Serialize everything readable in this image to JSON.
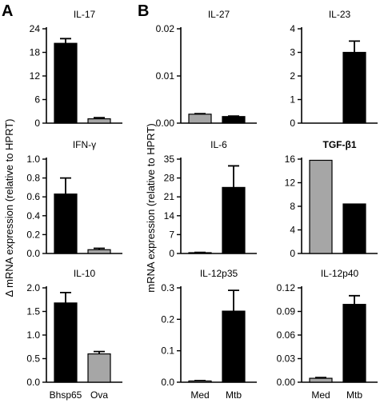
{
  "panel_letters": {
    "a": "A",
    "b": "B"
  },
  "ylabels": {
    "a": "Δ mRNA expression (relative to HPRT)",
    "b": "mRNA expression (relative to HPRT)"
  },
  "colors": {
    "black_bar": "#000000",
    "gray_bar": "#a6a6a6"
  },
  "chart_data": [
    {
      "type": "bar",
      "title": "IL-17",
      "title_bold": false,
      "categories": [
        "Bhsp65",
        "Ova"
      ],
      "show_categories": false,
      "values": [
        20.3,
        1.1
      ],
      "errors": [
        1.2,
        0.3
      ],
      "colors": [
        "black",
        "gray"
      ],
      "ylim": [
        0,
        24
      ],
      "yticks": [
        "0",
        "6",
        "12",
        "18",
        "24"
      ]
    },
    {
      "type": "bar",
      "title": "IFN-γ",
      "title_bold": false,
      "categories": [
        "Bhsp65",
        "Ova"
      ],
      "show_categories": false,
      "values": [
        0.63,
        0.04
      ],
      "errors": [
        0.17,
        0.015
      ],
      "colors": [
        "black",
        "gray"
      ],
      "ylim": [
        0,
        1.0
      ],
      "yticks": [
        "0.0",
        "0.2",
        "0.4",
        "0.6",
        "0.8",
        "1.0"
      ]
    },
    {
      "type": "bar",
      "title": "IL-10",
      "title_bold": false,
      "categories": [
        "Bhsp65",
        "Ova"
      ],
      "show_categories": true,
      "values": [
        1.68,
        0.6
      ],
      "errors": [
        0.22,
        0.05
      ],
      "colors": [
        "black",
        "gray"
      ],
      "ylim": [
        0,
        2.0
      ],
      "yticks": [
        "0.0",
        "0.5",
        "1.0",
        "1.5",
        "2.0"
      ]
    },
    {
      "type": "bar",
      "title": "IL-27",
      "title_bold": false,
      "categories": [
        "Med",
        "Mtb"
      ],
      "show_categories": false,
      "values": [
        0.0019,
        0.0014
      ],
      "errors": [
        0.0001,
        0.0001
      ],
      "colors": [
        "gray",
        "black"
      ],
      "ylim": [
        0,
        0.02
      ],
      "yticks": [
        "0.00",
        "0.01",
        "0.02"
      ]
    },
    {
      "type": "bar",
      "title": "IL-23",
      "title_bold": false,
      "categories": [
        "Med",
        "Mtb"
      ],
      "show_categories": false,
      "values": [
        0,
        3.0
      ],
      "errors": [
        0,
        0.48
      ],
      "colors": [
        "gray",
        "black"
      ],
      "ylim": [
        0,
        4
      ],
      "yticks": [
        "0",
        "1",
        "2",
        "3",
        "4"
      ]
    },
    {
      "type": "bar",
      "title": "IL-6",
      "title_bold": false,
      "categories": [
        "Med",
        "Mtb"
      ],
      "show_categories": false,
      "values": [
        0.3,
        24.5
      ],
      "errors": [
        0.1,
        8.0
      ],
      "colors": [
        "gray",
        "black"
      ],
      "ylim": [
        0,
        35
      ],
      "yticks": [
        "0",
        "7",
        "14",
        "21",
        "28",
        "35"
      ]
    },
    {
      "type": "bar",
      "title": "TGF-β1",
      "title_bold": true,
      "categories": [
        "Med",
        "Mtb"
      ],
      "show_categories": false,
      "values": [
        15.8,
        8.4
      ],
      "errors": [
        0,
        0
      ],
      "colors": [
        "gray",
        "black"
      ],
      "ylim": [
        0,
        16
      ],
      "yticks": [
        "0",
        "4",
        "8",
        "12",
        "16"
      ]
    },
    {
      "type": "bar",
      "title": "IL-12p35",
      "title_bold": false,
      "categories": [
        "Med",
        "Mtb"
      ],
      "show_categories": true,
      "values": [
        0.004,
        0.226
      ],
      "errors": [
        0.001,
        0.066
      ],
      "colors": [
        "gray",
        "black"
      ],
      "ylim": [
        0,
        0.3
      ],
      "yticks": [
        "0.0",
        "0.1",
        "0.2",
        "0.3"
      ]
    },
    {
      "type": "bar",
      "title": "IL-12p40",
      "title_bold": false,
      "categories": [
        "Med",
        "Mtb"
      ],
      "show_categories": true,
      "values": [
        0.005,
        0.099
      ],
      "errors": [
        0.001,
        0.011
      ],
      "colors": [
        "gray",
        "black"
      ],
      "ylim": [
        0,
        0.12
      ],
      "yticks": [
        "0.00",
        "0.03",
        "0.06",
        "0.09",
        "0.12"
      ]
    }
  ]
}
